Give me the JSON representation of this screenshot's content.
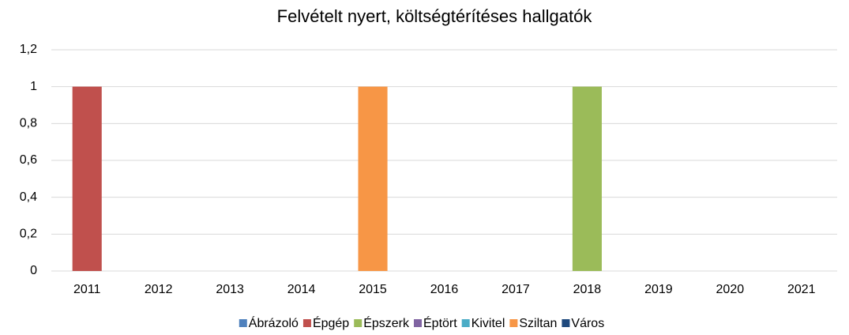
{
  "chart_data": {
    "type": "bar",
    "title": "Felvételt nyert, költségtérítéses hallgatók",
    "categories": [
      "2011",
      "2012",
      "2013",
      "2014",
      "2015",
      "2016",
      "2017",
      "2018",
      "2019",
      "2020",
      "2021"
    ],
    "series": [
      {
        "name": "Ábrázoló",
        "color": "#4f81bd",
        "values": [
          0,
          0,
          0,
          0,
          0,
          0,
          0,
          0,
          0,
          0,
          0
        ]
      },
      {
        "name": "Épgép",
        "color": "#c0504d",
        "values": [
          1,
          0,
          0,
          0,
          0,
          0,
          0,
          0,
          0,
          0,
          0
        ]
      },
      {
        "name": "Épszerk",
        "color": "#9bbb59",
        "values": [
          0,
          0,
          0,
          0,
          0,
          0,
          0,
          1,
          0,
          0,
          0
        ]
      },
      {
        "name": "Éptört",
        "color": "#8064a2",
        "values": [
          0,
          0,
          0,
          0,
          0,
          0,
          0,
          0,
          0,
          0,
          0
        ]
      },
      {
        "name": "Kivitel",
        "color": "#4bacc6",
        "values": [
          0,
          0,
          0,
          0,
          0,
          0,
          0,
          0,
          0,
          0,
          0
        ]
      },
      {
        "name": "Sziltan",
        "color": "#f79646",
        "values": [
          0,
          0,
          0,
          0,
          1,
          0,
          0,
          0,
          0,
          0,
          0
        ]
      },
      {
        "name": "Város",
        "color": "#1f497d",
        "values": [
          0,
          0,
          0,
          0,
          0,
          0,
          0,
          0,
          0,
          0,
          0
        ]
      }
    ],
    "ylim": [
      0,
      1.2
    ],
    "yticks": [
      0,
      {
        "value": 0.2,
        "label": "0,2"
      },
      {
        "value": 0.4,
        "label": "0,4"
      },
      {
        "value": 0.6,
        "label": "0,6"
      },
      {
        "value": 0.8,
        "label": "0,8"
      },
      1,
      {
        "value": 1.2,
        "label": "1,2"
      }
    ],
    "grid": true,
    "legend": "bottom"
  }
}
